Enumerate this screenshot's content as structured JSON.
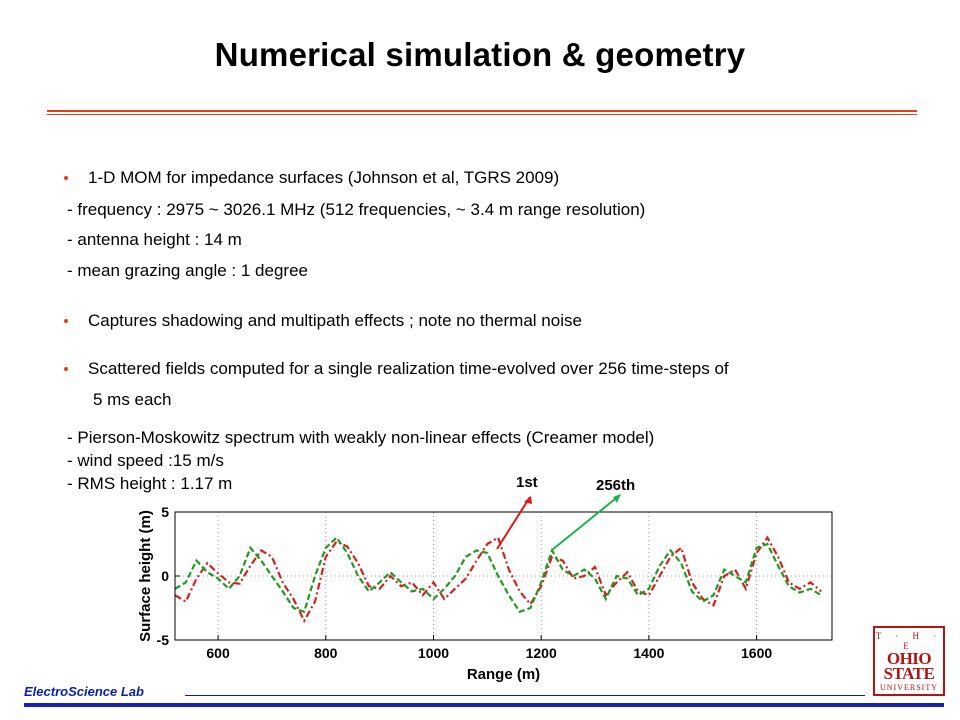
{
  "title": "Numerical simulation & geometry",
  "bullets": [
    {
      "text": "1-D MOM for impedance surfaces (Johnson et al, TGRS 2009)",
      "subs": [
        "- frequency : 2975 ~ 3026.1 MHz  (512 frequencies, ~ 3.4 m range resolution)",
        "- antenna height : 14 m",
        "- mean grazing angle : 1 degree"
      ]
    },
    {
      "text": "Captures shadowing and multipath effects ; note no thermal noise"
    },
    {
      "text": "Scattered fields computed for a single realization time-evolved over 256 time-steps of",
      "continuation": "5 ms each"
    }
  ],
  "details": [
    "- Pierson-Moskowitz spectrum with weakly non-linear effects (Creamer model)",
    "- wind speed :15 m/s",
    "- RMS height : 1.17 m"
  ],
  "annotations": {
    "first": "1st",
    "last": "256th",
    "first_color": "#e01818",
    "last_color": "#22b04a"
  },
  "footer": {
    "lab": "ElectroScience Lab"
  },
  "logo": {
    "line1": "T · H · E",
    "line2": "OHIO",
    "line3": "STATE",
    "line4": "UNIVERSITY"
  },
  "colors": {
    "accent": "#e3401a",
    "footer_blue": "#1621b8"
  },
  "chart_data": {
    "type": "line",
    "xlabel": "Range (m)",
    "ylabel": "Surface height (m)",
    "xlim": [
      520,
      1740
    ],
    "ylim": [
      -5,
      5
    ],
    "xticks": [
      600,
      800,
      1000,
      1200,
      1400,
      1600
    ],
    "yticks": [
      -5,
      0,
      5
    ],
    "grid": true,
    "series": [
      {
        "color": "#d42020",
        "dash": "dashdot",
        "x": [
          520,
          540,
          560,
          580,
          600,
          620,
          640,
          660,
          680,
          700,
          720,
          740,
          760,
          780,
          800,
          820,
          840,
          860,
          880,
          900,
          920,
          940,
          960,
          980,
          1000,
          1020,
          1040,
          1060,
          1080,
          1100,
          1120,
          1140,
          1160,
          1180,
          1200,
          1220,
          1240,
          1260,
          1280,
          1300,
          1320,
          1340,
          1360,
          1380,
          1400,
          1420,
          1440,
          1460,
          1480,
          1500,
          1520,
          1540,
          1560,
          1580,
          1600,
          1620,
          1640,
          1660,
          1680,
          1700,
          1720
        ],
        "y": [
          -1.5,
          -2.0,
          -0.2,
          1.0,
          0.2,
          -0.5,
          -0.6,
          0.8,
          2.0,
          1.5,
          -0.5,
          -1.8,
          -3.5,
          -2.0,
          1.5,
          2.7,
          2.3,
          1.0,
          -0.8,
          -1.0,
          0.0,
          -0.8,
          -0.5,
          -1.5,
          -0.5,
          -1.8,
          -1.0,
          -0.2,
          1.2,
          2.5,
          3.0,
          0.5,
          -1.2,
          -2.2,
          -0.8,
          1.5,
          1.2,
          -0.2,
          0.0,
          0.7,
          -1.5,
          -0.5,
          0.3,
          -1.2,
          -1.5,
          0.0,
          1.5,
          2.2,
          -0.5,
          -1.8,
          -2.3,
          0.0,
          0.5,
          -1.0,
          1.8,
          3.0,
          1.5,
          -0.5,
          -1.0,
          -0.5,
          -1.2
        ]
      },
      {
        "color": "#229922",
        "dash": "dashed",
        "x": [
          520,
          540,
          560,
          580,
          600,
          620,
          640,
          660,
          680,
          700,
          720,
          740,
          760,
          780,
          800,
          820,
          840,
          860,
          880,
          900,
          920,
          940,
          960,
          980,
          1000,
          1020,
          1040,
          1060,
          1080,
          1100,
          1120,
          1140,
          1160,
          1180,
          1200,
          1220,
          1240,
          1260,
          1280,
          1300,
          1320,
          1340,
          1360,
          1380,
          1400,
          1420,
          1440,
          1460,
          1480,
          1500,
          1520,
          1540,
          1560,
          1580,
          1600,
          1620,
          1640,
          1660,
          1680,
          1700,
          1720
        ],
        "y": [
          -1.0,
          -0.5,
          1.2,
          0.3,
          -0.2,
          -1.0,
          0.0,
          2.2,
          1.2,
          0.0,
          -1.2,
          -2.5,
          -2.8,
          0.0,
          2.2,
          3.0,
          1.8,
          0.0,
          -1.2,
          -0.5,
          0.3,
          -0.5,
          -1.2,
          -1.0,
          -1.8,
          -1.0,
          0.0,
          1.5,
          2.0,
          1.8,
          0.0,
          -1.5,
          -2.8,
          -2.5,
          -0.5,
          2.0,
          0.5,
          0.0,
          0.5,
          -0.2,
          -1.8,
          0.0,
          -0.2,
          -1.5,
          -1.0,
          0.8,
          2.0,
          1.0,
          -1.2,
          -2.0,
          -1.5,
          0.5,
          0.0,
          -0.5,
          2.2,
          2.5,
          0.8,
          -0.8,
          -1.3,
          -1.0,
          -1.5
        ]
      }
    ]
  }
}
